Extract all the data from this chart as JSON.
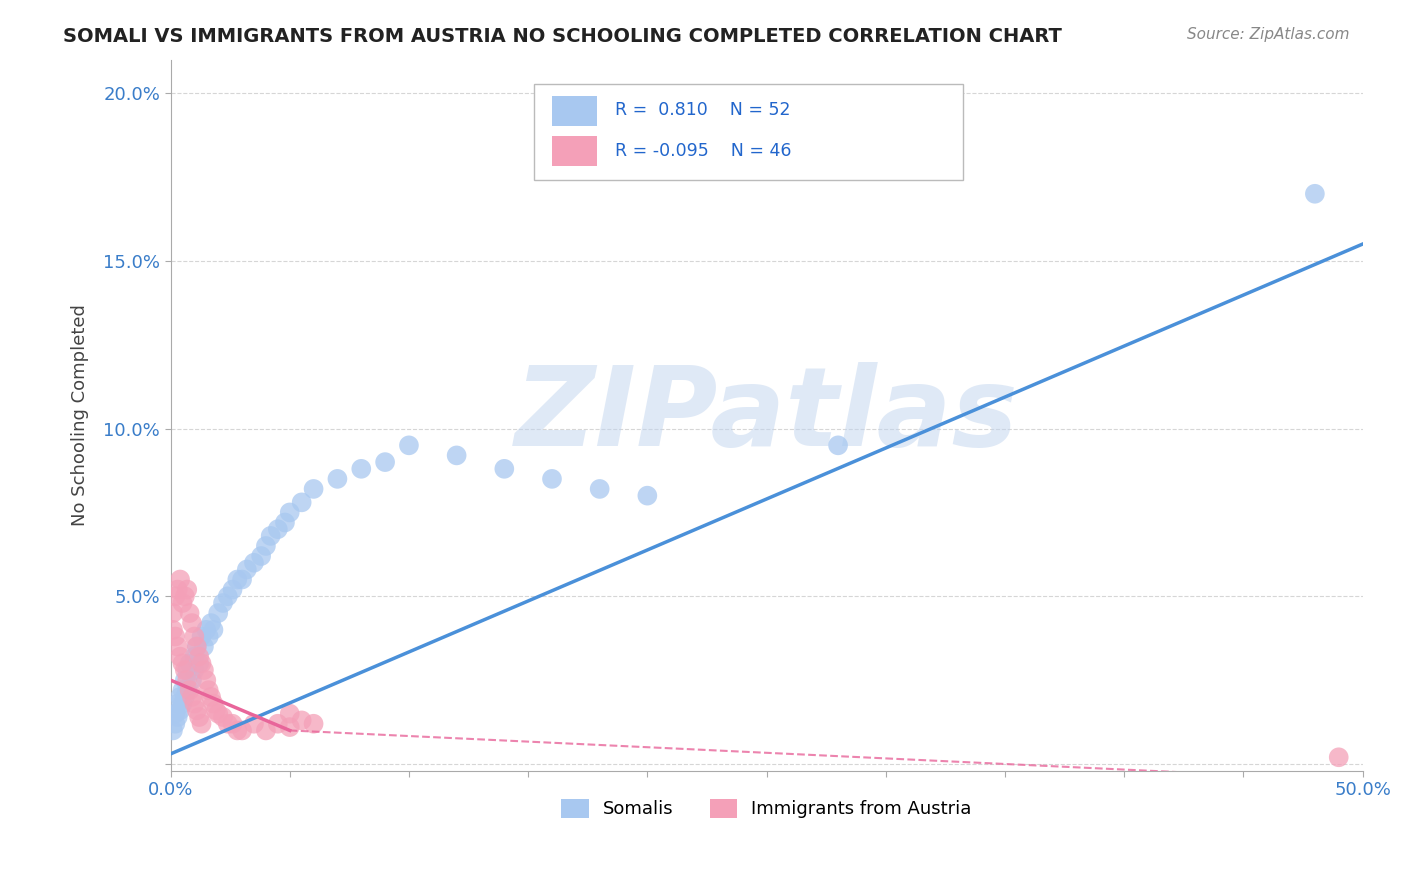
{
  "title": "SOMALI VS IMMIGRANTS FROM AUSTRIA NO SCHOOLING COMPLETED CORRELATION CHART",
  "source_text": "Source: ZipAtlas.com",
  "ylabel": "No Schooling Completed",
  "xlim": [
    0.0,
    0.5
  ],
  "ylim": [
    -0.002,
    0.21
  ],
  "somali_R": 0.81,
  "somali_N": 52,
  "austria_R": -0.095,
  "austria_N": 46,
  "somali_color": "#A8C8F0",
  "austria_color": "#F4A0B8",
  "trendline_somali_color": "#4A90D9",
  "trendline_austria_color": "#E8659A",
  "watermark": "ZIPatlas",
  "watermark_color": "#C0D4EE",
  "background_color": "#FFFFFF",
  "grid_color": "#CCCCCC",
  "somali_x": [
    0.001,
    0.002,
    0.002,
    0.003,
    0.003,
    0.004,
    0.004,
    0.005,
    0.005,
    0.006,
    0.006,
    0.007,
    0.007,
    0.008,
    0.009,
    0.01,
    0.01,
    0.011,
    0.012,
    0.013,
    0.014,
    0.015,
    0.016,
    0.017,
    0.018,
    0.02,
    0.022,
    0.024,
    0.026,
    0.028,
    0.03,
    0.032,
    0.035,
    0.038,
    0.04,
    0.042,
    0.045,
    0.048,
    0.05,
    0.055,
    0.06,
    0.07,
    0.08,
    0.09,
    0.1,
    0.12,
    0.14,
    0.16,
    0.18,
    0.2,
    0.28,
    0.48
  ],
  "somali_y": [
    0.01,
    0.015,
    0.012,
    0.018,
    0.014,
    0.02,
    0.016,
    0.022,
    0.018,
    0.025,
    0.02,
    0.028,
    0.022,
    0.03,
    0.025,
    0.032,
    0.028,
    0.035,
    0.03,
    0.038,
    0.035,
    0.04,
    0.038,
    0.042,
    0.04,
    0.045,
    0.048,
    0.05,
    0.052,
    0.055,
    0.055,
    0.058,
    0.06,
    0.062,
    0.065,
    0.068,
    0.07,
    0.072,
    0.075,
    0.078,
    0.082,
    0.085,
    0.088,
    0.09,
    0.095,
    0.092,
    0.088,
    0.085,
    0.082,
    0.08,
    0.095,
    0.17
  ],
  "austria_x": [
    0.001,
    0.001,
    0.002,
    0.002,
    0.003,
    0.003,
    0.004,
    0.004,
    0.005,
    0.005,
    0.006,
    0.006,
    0.007,
    0.007,
    0.008,
    0.008,
    0.009,
    0.009,
    0.01,
    0.01,
    0.011,
    0.011,
    0.012,
    0.012,
    0.013,
    0.013,
    0.014,
    0.015,
    0.016,
    0.017,
    0.018,
    0.019,
    0.02,
    0.022,
    0.024,
    0.026,
    0.028,
    0.03,
    0.035,
    0.04,
    0.045,
    0.05,
    0.055,
    0.06,
    0.05,
    0.49
  ],
  "austria_y": [
    0.045,
    0.04,
    0.05,
    0.038,
    0.052,
    0.035,
    0.055,
    0.032,
    0.048,
    0.03,
    0.05,
    0.028,
    0.052,
    0.025,
    0.045,
    0.022,
    0.042,
    0.02,
    0.038,
    0.018,
    0.035,
    0.016,
    0.032,
    0.014,
    0.03,
    0.012,
    0.028,
    0.025,
    0.022,
    0.02,
    0.018,
    0.016,
    0.015,
    0.014,
    0.012,
    0.012,
    0.01,
    0.01,
    0.012,
    0.01,
    0.012,
    0.011,
    0.013,
    0.012,
    0.015,
    0.002
  ],
  "trendline_somali_x0": 0.0,
  "trendline_somali_x1": 0.5,
  "trendline_somali_y0": 0.003,
  "trendline_somali_y1": 0.155,
  "trendline_austria_solid_x0": 0.0,
  "trendline_austria_solid_x1": 0.05,
  "trendline_austria_solid_y0": 0.025,
  "trendline_austria_solid_y1": 0.01,
  "trendline_austria_dash_x0": 0.05,
  "trendline_austria_dash_x1": 0.5,
  "trendline_austria_dash_y0": 0.01,
  "trendline_austria_dash_y1": -0.005
}
